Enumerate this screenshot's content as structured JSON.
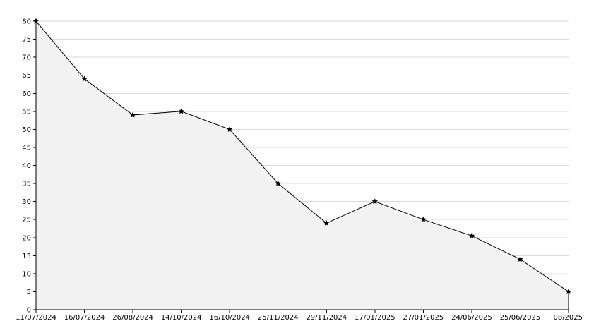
{
  "colors": {
    "background": "#ffffff",
    "plot_fill": "#f2f2f2",
    "grid": "#d9d9d9",
    "axis": "#000000",
    "line": "#000000",
    "marker": "#000000"
  },
  "chart_data": {
    "type": "area",
    "grid": true,
    "legend": "none",
    "ylim": [
      0,
      80
    ],
    "ytick_step": 5,
    "categories": [
      "11/07/2024",
      "16/07/2024",
      "26/08/2024",
      "14/10/2024",
      "16/10/2024",
      "25/11/2024",
      "29/11/2024",
      "17/01/2025",
      "27/01/2025",
      "24/06/2025",
      "25/06/2025",
      "08/2025"
    ],
    "values": [
      80,
      64,
      54,
      55,
      50,
      35,
      24,
      30,
      25,
      20.5,
      14,
      5
    ],
    "marker": "star"
  }
}
